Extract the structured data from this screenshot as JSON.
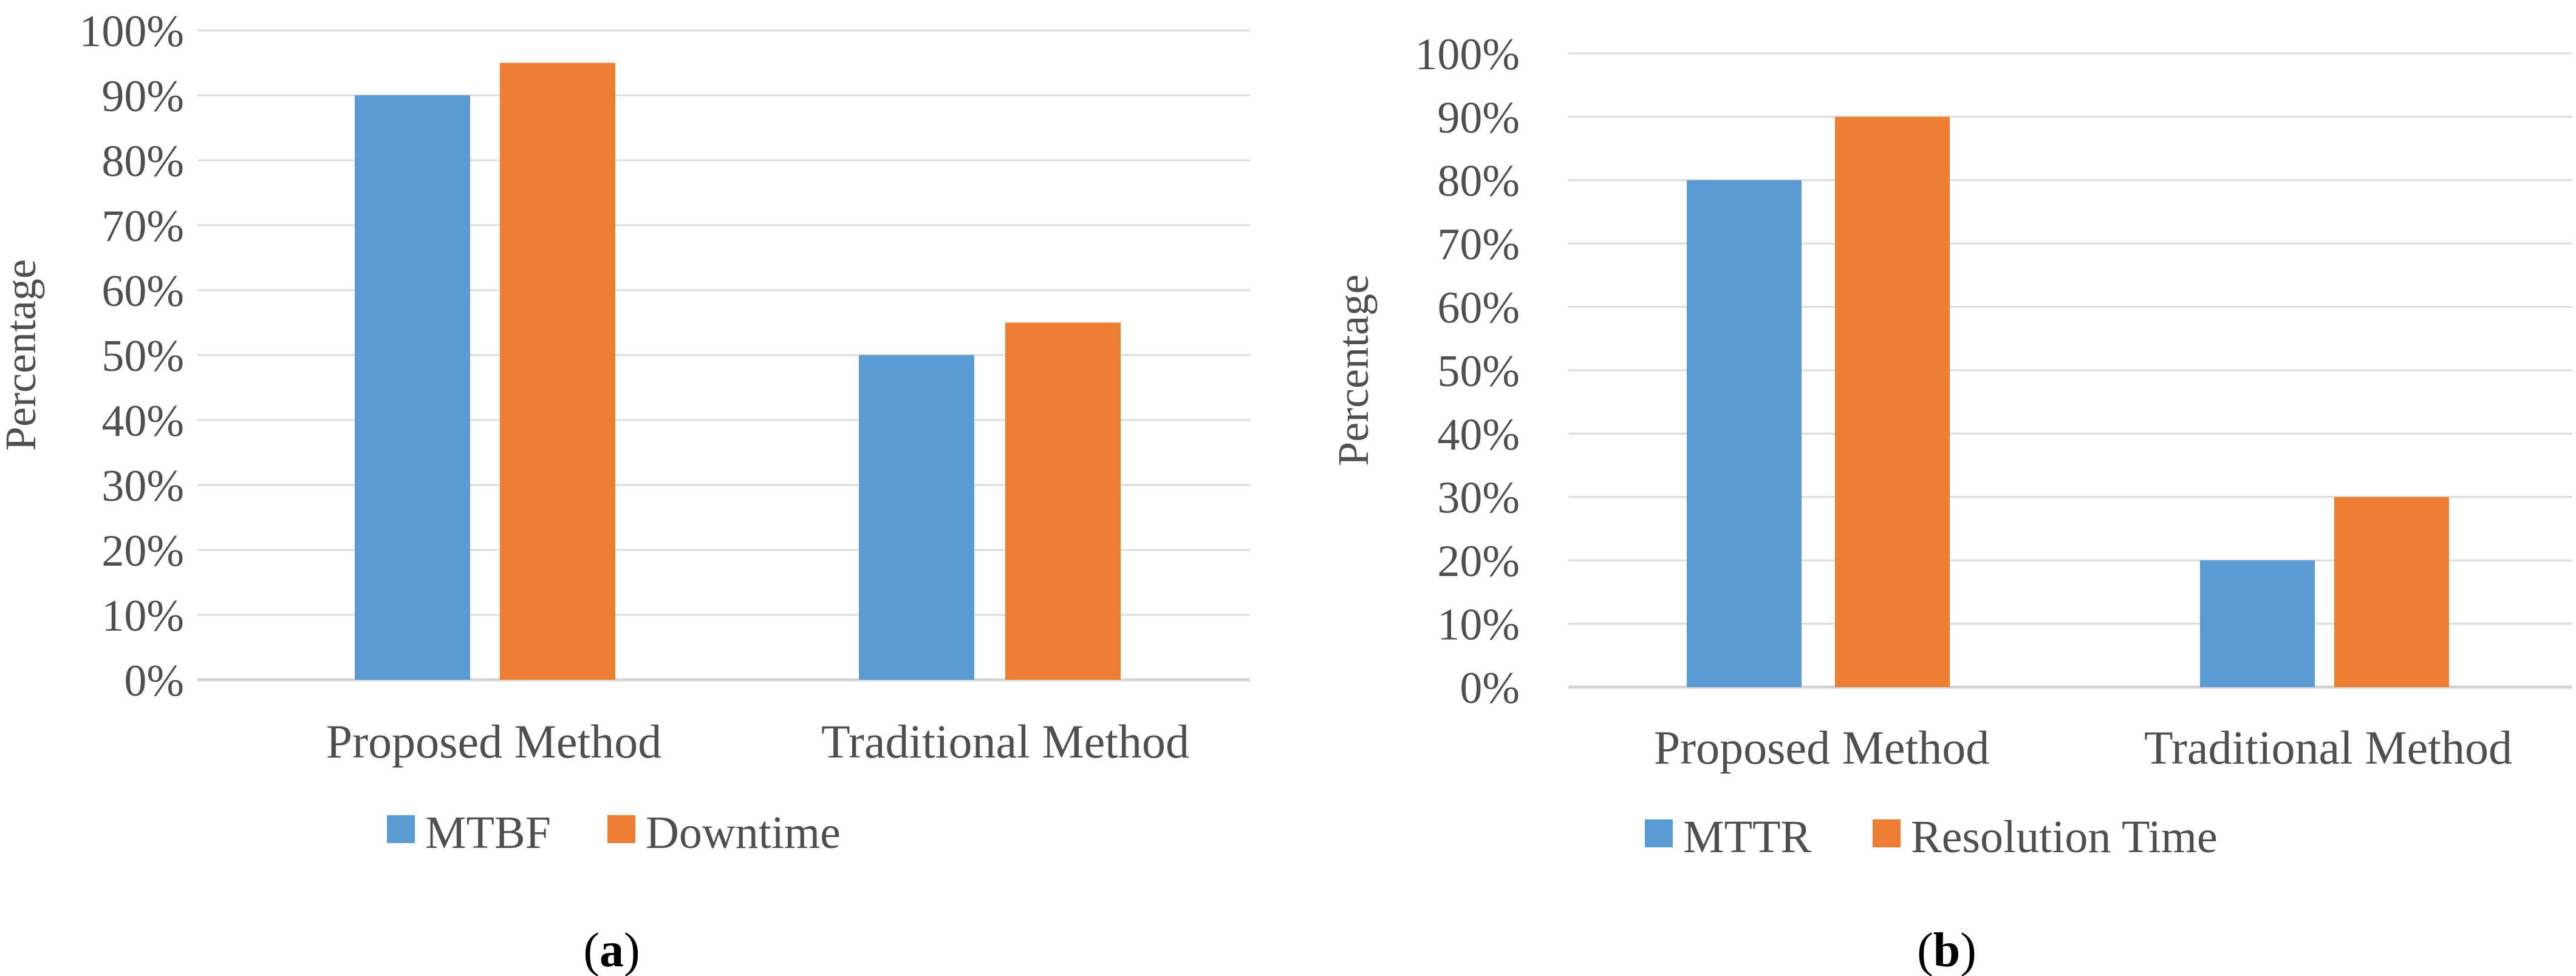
{
  "figure": {
    "background": "#ffffff",
    "grid_color": "#DCDCDC",
    "axis_line_color": "#D2D2D2",
    "axis_text_color": "#4F4F4F",
    "caption_color": "#000000",
    "series_palette": {
      "blue": "#5B9BD5",
      "orange": "#ED7D31"
    }
  },
  "chart_data": [
    {
      "type": "bar",
      "title": "",
      "caption": "(a)",
      "xlabel": "",
      "ylabel": "Percentage",
      "ylim": [
        0,
        100
      ],
      "ytick_step": 10,
      "yticks": [
        "0%",
        "10%",
        "20%",
        "30%",
        "40%",
        "50%",
        "60%",
        "70%",
        "80%",
        "90%",
        "100%"
      ],
      "grid": true,
      "legend_position": "bottom",
      "categories": [
        "Proposed Method",
        "Traditional Method"
      ],
      "series": [
        {
          "name": "MTBF",
          "color": "#5B9BD5",
          "values": [
            90,
            50
          ]
        },
        {
          "name": "Downtime",
          "color": "#ED7D31",
          "values": [
            95,
            55
          ]
        }
      ]
    },
    {
      "type": "bar",
      "title": "",
      "caption": "(b)",
      "xlabel": "",
      "ylabel": "Percentage",
      "ylim": [
        0,
        100
      ],
      "ytick_step": 10,
      "yticks": [
        "0%",
        "10%",
        "20%",
        "30%",
        "40%",
        "50%",
        "60%",
        "70%",
        "80%",
        "90%",
        "100%"
      ],
      "grid": true,
      "legend_position": "bottom",
      "categories": [
        "Proposed Method",
        "Traditional Method"
      ],
      "series": [
        {
          "name": "MTTR",
          "color": "#5B9BD5",
          "values": [
            80,
            20
          ]
        },
        {
          "name": "Resolution Time",
          "color": "#ED7D31",
          "values": [
            90,
            30
          ]
        }
      ]
    }
  ]
}
